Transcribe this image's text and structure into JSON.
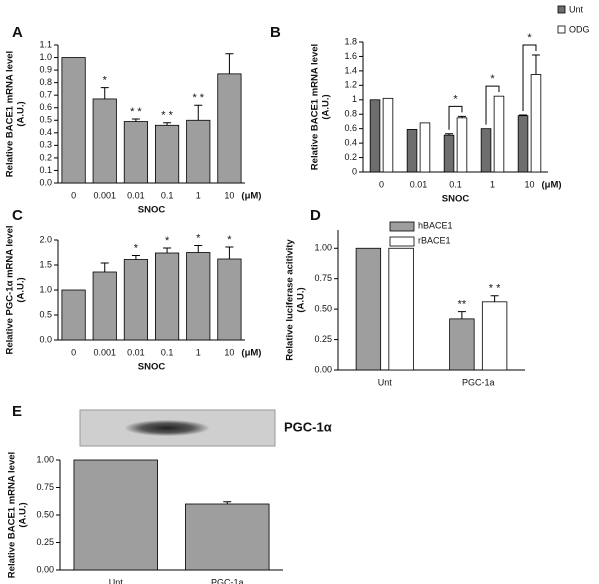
{
  "chart_data": [
    {
      "type": "bar",
      "panel": "A",
      "ylabel": [
        "Relative BACE1 mRNA level",
        "(A.U.)"
      ],
      "xlabel": "SNOC",
      "unit": "(μM)",
      "categories": [
        "0",
        "0.001",
        "0.01",
        "0.1",
        "1",
        "10"
      ],
      "values": [
        1.0,
        0.67,
        0.49,
        0.46,
        0.5,
        0.87
      ],
      "errors": [
        0,
        0.09,
        0.02,
        0.02,
        0.12,
        0.16
      ],
      "significance": [
        null,
        "*",
        "* *",
        "* *",
        "* *",
        null
      ],
      "color": "#9e9e9e",
      "ylim": [
        0,
        1.1
      ],
      "yticks": [
        {
          "value": 0,
          "label": "0.0"
        },
        0.1,
        0.2,
        0.3,
        0.4,
        0.5,
        0.6,
        0.7,
        0.8,
        0.9,
        {
          "value": 1,
          "label": "1.0"
        },
        1.1
      ]
    },
    {
      "type": "grouped_bar",
      "panel": "B",
      "ylabel": [
        "Relative BACE1 mRNA level",
        "(A.U.)"
      ],
      "xlabel": "SNOC",
      "unit": "(μM)",
      "categories": [
        "0",
        "0.01",
        "0.1",
        "1",
        "10"
      ],
      "series": [
        {
          "name": "Unt",
          "color": "#6e6e6e",
          "values": [
            1.0,
            0.59,
            0.51,
            0.6,
            0.78
          ],
          "errors": [
            0,
            0,
            0.02,
            0,
            0.01
          ]
        },
        {
          "name": "ODG",
          "color": "#ffffff",
          "values": [
            1.02,
            0.68,
            0.75,
            1.05,
            1.35
          ],
          "errors": [
            0,
            0,
            0.02,
            0,
            0.27
          ]
        }
      ],
      "significance": [
        null,
        null,
        "*",
        "*",
        "*"
      ],
      "legend": "outside-upper-right",
      "ylim": [
        0,
        1.8
      ],
      "yticks": [
        0,
        0.2,
        0.4,
        0.6,
        0.8,
        1,
        1.2,
        1.4,
        1.6,
        1.8
      ]
    },
    {
      "type": "bar",
      "panel": "C",
      "ylabel": [
        "Relative PGC-1α mRNA level",
        "(A.U.)"
      ],
      "xlabel": "SNOC",
      "unit": "(μM)",
      "categories": [
        "0",
        "0.001",
        "0.01",
        "0.1",
        "1",
        "10"
      ],
      "values": [
        1.0,
        1.36,
        1.61,
        1.74,
        1.75,
        1.62
      ],
      "errors": [
        0,
        0.18,
        0.08,
        0.1,
        0.14,
        0.24
      ],
      "significance": [
        null,
        null,
        "*",
        "*",
        "*",
        "*"
      ],
      "color": "#9e9e9e",
      "ylim": [
        0,
        2.0
      ],
      "yticks": [
        {
          "value": 0,
          "label": "0.0"
        },
        0.5,
        {
          "value": 1,
          "label": "1.0"
        },
        1.5,
        {
          "value": 2,
          "label": "2.0"
        }
      ]
    },
    {
      "type": "grouped_bar",
      "panel": "D",
      "ylabel": [
        "Relative luciferase acitivity",
        "(A.U.)"
      ],
      "categories": [
        "Unt",
        "PGC-1a"
      ],
      "series": [
        {
          "name": "hBACE1",
          "color": "#9e9e9e",
          "values": [
            1.0,
            0.42
          ],
          "errors": [
            0,
            0.06
          ],
          "significance": [
            null,
            "**"
          ]
        },
        {
          "name": "rBACE1",
          "color": "#ffffff",
          "values": [
            1.0,
            0.56
          ],
          "errors": [
            0,
            0.05
          ],
          "significance": [
            null,
            "* *"
          ]
        }
      ],
      "legend": "upper-right",
      "ylim": [
        0,
        1.15
      ],
      "yticks": [
        {
          "value": 0,
          "label": "0.00"
        },
        0.25,
        {
          "value": 0.5,
          "label": "0.50"
        },
        0.75,
        {
          "value": 1,
          "label": "1.00"
        }
      ]
    },
    {
      "type": "bar",
      "panel": "E",
      "ylabel": [
        "Relative BACE1 mRNA level",
        "(A.U.)"
      ],
      "blot_label": "PGC-1α",
      "categories": [
        "Unt",
        "PGC-1a"
      ],
      "values": [
        1.0,
        0.6
      ],
      "errors": [
        0,
        0.02
      ],
      "color": "#9e9e9e",
      "ylim": [
        0,
        1.0
      ],
      "yticks": [
        {
          "value": 0,
          "label": "0.00"
        },
        0.25,
        {
          "value": 0.5,
          "label": "0.50"
        },
        0.75,
        {
          "value": 1,
          "label": "1.00"
        }
      ]
    }
  ]
}
